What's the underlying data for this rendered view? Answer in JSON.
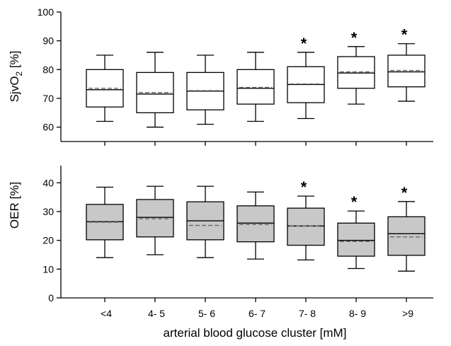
{
  "chart_data": [
    {
      "type": "box",
      "ylabel": "SjvO",
      "ylabel_sub": "2",
      "ylabel_unit": " [%]",
      "ylim": [
        55,
        100
      ],
      "yticks": [
        60,
        70,
        80,
        90,
        100
      ],
      "box_fill": "#ffffff",
      "categories": [
        "<4",
        "4- 5",
        "5- 6",
        "6- 7",
        "7- 8",
        "8- 9",
        ">9"
      ],
      "boxes": [
        {
          "min": 62,
          "q1": 67,
          "median": 73,
          "mean": 73.5,
          "q3": 80,
          "max": 85,
          "significant": false
        },
        {
          "min": 60,
          "q1": 65,
          "median": 71.5,
          "mean": 72,
          "q3": 79,
          "max": 86,
          "significant": false
        },
        {
          "min": 61,
          "q1": 66,
          "median": 72.5,
          "mean": 72.7,
          "q3": 79,
          "max": 85,
          "significant": false
        },
        {
          "min": 62,
          "q1": 68,
          "median": 73.5,
          "mean": 73.8,
          "q3": 80,
          "max": 86,
          "significant": false
        },
        {
          "min": 63,
          "q1": 68.5,
          "median": 74.8,
          "mean": 75,
          "q3": 81,
          "max": 86,
          "significant": true
        },
        {
          "min": 68,
          "q1": 73.5,
          "median": 78.8,
          "mean": 79.2,
          "q3": 84.5,
          "max": 88,
          "significant": true
        },
        {
          "min": 69,
          "q1": 74,
          "median": 79.2,
          "mean": 79.7,
          "q3": 85,
          "max": 89,
          "significant": true
        }
      ],
      "annotation": "*"
    },
    {
      "type": "box",
      "ylabel": "OER [%]",
      "ylim": [
        0,
        46
      ],
      "yticks": [
        0,
        10,
        20,
        30,
        40
      ],
      "box_fill": "#c8c8c8",
      "xlabel": "arterial blood glucose cluster [mM]",
      "categories": [
        "<4",
        "4- 5",
        "5- 6",
        "6- 7",
        "7- 8",
        "8- 9",
        ">9"
      ],
      "boxes": [
        {
          "min": 14,
          "q1": 20.2,
          "median": 26.5,
          "mean": 26.3,
          "q3": 32.5,
          "max": 38.5,
          "significant": false
        },
        {
          "min": 15,
          "q1": 21.2,
          "median": 28,
          "mean": 27.5,
          "q3": 34.2,
          "max": 38.8,
          "significant": false
        },
        {
          "min": 14,
          "q1": 20.2,
          "median": 26.8,
          "mean": 25.2,
          "q3": 33.4,
          "max": 38.8,
          "significant": false
        },
        {
          "min": 13.5,
          "q1": 19.5,
          "median": 26,
          "mean": 25.5,
          "q3": 32,
          "max": 36.8,
          "significant": false
        },
        {
          "min": 13.2,
          "q1": 18.3,
          "median": 25,
          "mean": 25,
          "q3": 31.2,
          "max": 35.4,
          "significant": true
        },
        {
          "min": 10.2,
          "q1": 14.5,
          "median": 20,
          "mean": 19.6,
          "q3": 26,
          "max": 30.2,
          "significant": true
        },
        {
          "min": 9.3,
          "q1": 14.8,
          "median": 22.3,
          "mean": 21.2,
          "q3": 28.2,
          "max": 33.5,
          "significant": true
        }
      ],
      "annotation": "*"
    }
  ]
}
